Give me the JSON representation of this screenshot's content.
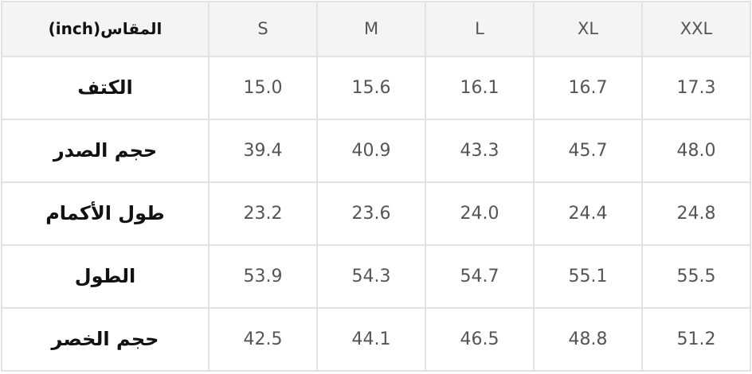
{
  "table": {
    "header": [
      "المقاس(inch)",
      "S",
      "M",
      "L",
      "XL",
      "XXL"
    ],
    "rows": [
      [
        "الكتف",
        "15.0",
        "15.6",
        "16.1",
        "16.7",
        "17.3"
      ],
      [
        "حجم الصدر",
        "39.4",
        "40.9",
        "43.3",
        "45.7",
        "48.0"
      ],
      [
        "طول الأكمام",
        "23.2",
        "23.6",
        "24.0",
        "24.4",
        "24.8"
      ],
      [
        "الطول",
        "53.9",
        "54.3",
        "54.7",
        "55.1",
        "55.5"
      ],
      [
        "حجم الخصر",
        "42.5",
        "44.1",
        "46.5",
        "48.8",
        "51.2"
      ]
    ]
  }
}
